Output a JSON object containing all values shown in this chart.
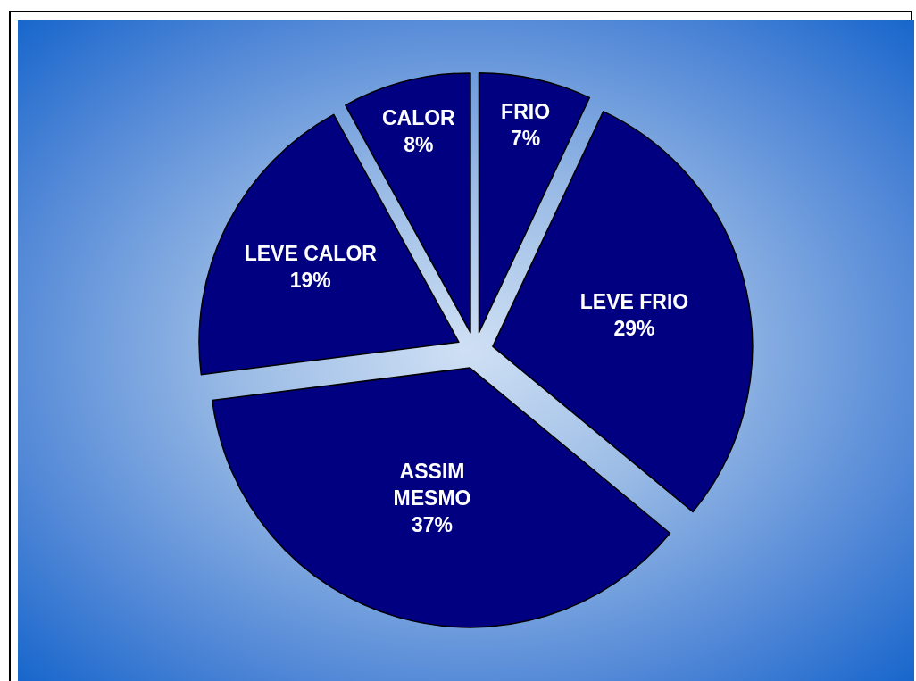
{
  "chart_data": {
    "type": "pie",
    "categories": [
      "FRIO",
      "LEVE FRIO",
      "ASSIM MESMO",
      "LEVE CALOR",
      "CALOR"
    ],
    "values": [
      7,
      29,
      37,
      19,
      8
    ],
    "value_labels": [
      "7%",
      "29%",
      "37%",
      "19%",
      "8%"
    ],
    "colors": [
      "#000080",
      "#000080",
      "#000080",
      "#000080",
      "#000080"
    ],
    "legend": false
  }
}
